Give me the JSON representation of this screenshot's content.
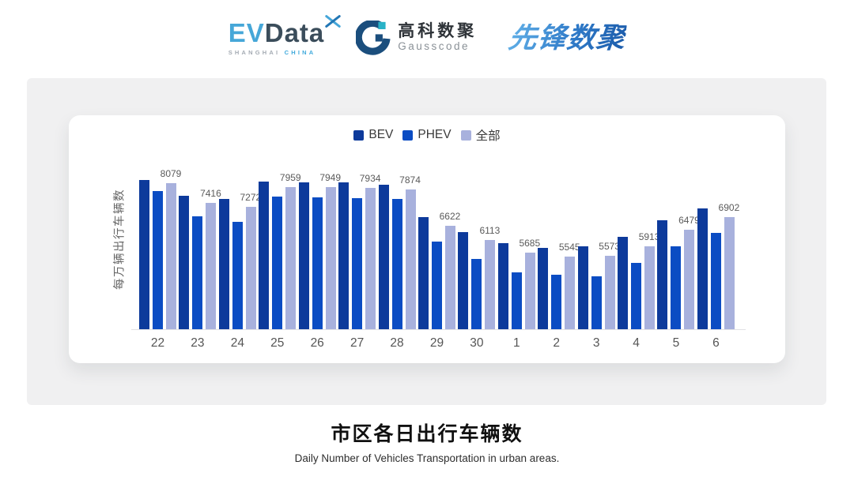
{
  "header": {
    "evdata": {
      "ev": "EV",
      "data": "Data",
      "sub_left": "SHANGHAI",
      "sub_right": "CHINA",
      "blue": "#46a7d8",
      "dark": "#3b4d5b"
    },
    "gausscode": {
      "cn": "高科数聚",
      "en": "Gausscode",
      "navy": "#1b4e7d",
      "teal": "#29b2c7"
    },
    "xianfeng": {
      "text": "先锋数聚",
      "blue": "#2a72c2"
    }
  },
  "chart_data": {
    "type": "bar",
    "title": "市区各日出行车辆数",
    "subtitle": "Daily Number of Vehicles Transportation in urban areas.",
    "ylabel": "每万辆出行车辆数",
    "xlabel": "",
    "legend_position": "top",
    "grid": false,
    "ylim": [
      3040,
      9040
    ],
    "categories": [
      "22",
      "23",
      "24",
      "25",
      "26",
      "27",
      "28",
      "29",
      "30",
      "1",
      "2",
      "3",
      "4",
      "5",
      "6"
    ],
    "series": [
      {
        "name": "BEV",
        "color": "#0d3a9b",
        "values": [
          8200,
          7650,
          7550,
          8150,
          8120,
          8120,
          8040,
          6920,
          6405,
          6025,
          5860,
          5915,
          6240,
          6815,
          7220
        ]
      },
      {
        "name": "PHEV",
        "color": "#0b4cc3",
        "values": [
          7820,
          6950,
          6760,
          7630,
          7600,
          7575,
          7550,
          6080,
          5480,
          5015,
          4910,
          4880,
          5340,
          5915,
          6380
        ]
      },
      {
        "name": "全部",
        "color": "#a8b1dd",
        "show_labels": true,
        "values": [
          8079,
          7416,
          7272,
          7959,
          7949,
          7934,
          7874,
          6622,
          6113,
          5685,
          5545,
          5573,
          5913,
          6479,
          6902
        ]
      }
    ]
  },
  "footer": {
    "title": "市区各日出行车辆数",
    "subtitle": "Daily Number of Vehicles Transportation in urban areas."
  }
}
